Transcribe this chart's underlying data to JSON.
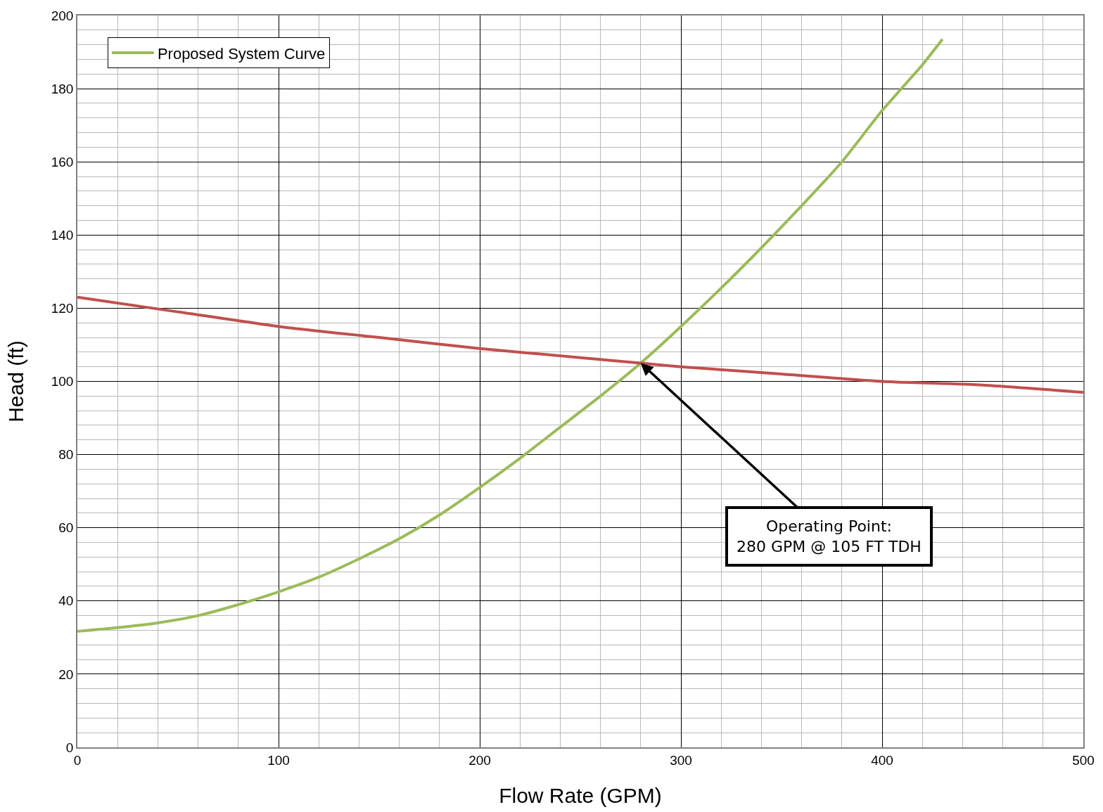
{
  "chart_data": {
    "type": "line",
    "xlabel": "Flow Rate (GPM)",
    "ylabel": "Head (ft)",
    "xlim": [
      0,
      500
    ],
    "xticks": [
      0,
      100,
      200,
      300,
      400,
      500
    ],
    "ylim": [
      0,
      200
    ],
    "yticks": [
      0,
      20,
      40,
      60,
      80,
      100,
      120,
      140,
      160,
      180,
      200
    ],
    "grid": true,
    "legend": "top left",
    "marker": "none",
    "line_style": "solid",
    "series": [
      {
        "name": "Proposed System Curve",
        "color": "#9bbb59",
        "x": [
          0,
          20,
          40,
          60,
          80,
          100,
          120,
          140,
          160,
          180,
          200,
          220,
          240,
          260,
          280,
          300,
          320,
          340,
          360,
          380,
          400,
          420,
          430
        ],
        "values": [
          31.7,
          32.7,
          34,
          36,
          39,
          42.5,
          46.5,
          51.5,
          57,
          63.5,
          71,
          79,
          87.5,
          96,
          105,
          115,
          125.5,
          136.5,
          148,
          160,
          174,
          186.5,
          193.5
        ]
      },
      {
        "color": "#c0504d",
        "x": [
          0,
          50,
          100,
          150,
          200,
          250,
          280,
          300,
          350,
          400,
          450,
          500
        ],
        "values": [
          123,
          119,
          115,
          112,
          109,
          106.5,
          105,
          104,
          102,
          100,
          99,
          97
        ]
      }
    ],
    "annotations": [
      {
        "text": "Operating Point:\n280 GPM @ 105 FT TDH",
        "x": 280,
        "y": 105
      }
    ]
  }
}
